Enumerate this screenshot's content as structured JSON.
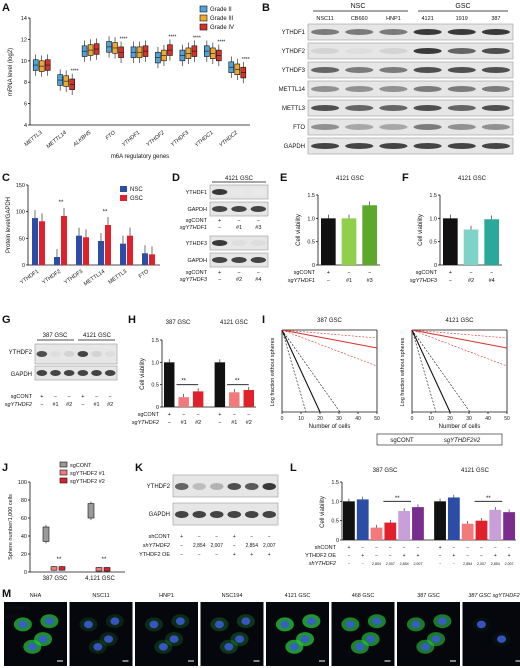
{
  "panels": {
    "A": {
      "label": "A",
      "chart_data": {
        "type": "boxplot",
        "ylabel": "mRNA level (log2)",
        "xlabel": "m6A regulatory genes",
        "ylim": [
          4,
          14
        ],
        "yticks": [
          "4",
          "6",
          "8",
          "10",
          "12",
          "14"
        ],
        "categories": [
          "METTL3",
          "METTL14",
          "ALKBH5",
          "FTO",
          "YTHDF1",
          "YTHDF2",
          "YTHDF3",
          "YTHDC1",
          "YTHDC2"
        ],
        "series": [
          {
            "name": "Grade II",
            "color": "#4fa3d9",
            "values": [
              9.6,
              8.2,
              10.9,
              11.3,
              10.8,
              10.3,
              10.5,
              10.9,
              9.4
            ]
          },
          {
            "name": "Grade III",
            "color": "#f0a92e",
            "values": [
              9.5,
              8.1,
              11.0,
              11.2,
              10.8,
              10.5,
              10.7,
              10.7,
              9.2
            ]
          },
          {
            "name": "Grade IV",
            "color": "#d6312b",
            "values": [
              9.6,
              7.8,
              11.1,
              10.8,
              10.9,
              11.0,
              10.9,
              10.5,
              8.9
            ]
          }
        ],
        "significance": [
          "",
          "****",
          "",
          "****",
          "",
          "****",
          "****",
          "****",
          "****"
        ]
      }
    },
    "B": {
      "label": "B",
      "group_labels": [
        "NSC",
        "GSC"
      ],
      "lanes": [
        "NSC11",
        "CB660",
        "HNP1",
        "4121",
        "1919",
        "387"
      ],
      "rows": [
        "YTHDF1",
        "YTHDF2",
        "YTHDF3",
        "METTL14",
        "METTL3",
        "FTO",
        "GAPDH"
      ]
    },
    "C": {
      "label": "C",
      "chart_data": {
        "type": "bar",
        "ylabel": "Protein level/GAPDH",
        "ylim": [
          0,
          150
        ],
        "yticks": [
          "0",
          "50",
          "100",
          "150"
        ],
        "categories": [
          "YTHDF1",
          "YTHDF2",
          "YTHDF3",
          "METTL14",
          "METTL3",
          "FTO"
        ],
        "series": [
          {
            "name": "NSC",
            "color": "#2b4da6",
            "values": [
              88,
              15,
              55,
              45,
              40,
              22
            ]
          },
          {
            "name": "GSC",
            "color": "#e0212b",
            "values": [
              82,
              92,
              52,
              75,
              55,
              20
            ]
          }
        ],
        "significance": [
          "",
          "**",
          "",
          "**",
          "",
          ""
        ]
      }
    },
    "D": {
      "label": "D",
      "title": "4121 GSC",
      "blot1": {
        "rows": [
          "YTHDF1",
          "GAPDH"
        ],
        "sgcont": [
          "+",
          "−",
          "−"
        ],
        "sg": [
          "−",
          "#1",
          "#3"
        ],
        "sg_label": "sgYTHDF1"
      },
      "blot2": {
        "rows": [
          "YTHDF3",
          "GAPDH"
        ],
        "sgcont": [
          "+",
          "−",
          "−"
        ],
        "sg": [
          "−",
          "#2",
          "#4"
        ],
        "sg_label": "sgYTHDF3"
      },
      "sgcont_label": "sgCONT"
    },
    "E": {
      "label": "E",
      "title": "4121 GSC",
      "chart_data": {
        "type": "bar",
        "ylabel": "Cell viability",
        "ylim": [
          0,
          1.5
        ],
        "yticks": [
          "0",
          "0.5",
          "1.0",
          "1.5"
        ],
        "values": [
          1.0,
          1.0,
          1.28
        ],
        "colors": [
          "#111111",
          "#8fcf4c",
          "#5ba82a"
        ],
        "sgcont": [
          "+",
          "−",
          "−"
        ],
        "sg": [
          "−",
          "#1",
          "#3"
        ],
        "sgcont_label": "sgCONT",
        "sg_label": "sgYTHDF1"
      }
    },
    "F": {
      "label": "F",
      "title": "4121 GSC",
      "chart_data": {
        "type": "bar",
        "ylabel": "Cell viability",
        "ylim": [
          0,
          1.5
        ],
        "yticks": [
          "0",
          "0.5",
          "1.0",
          "1.5"
        ],
        "values": [
          1.0,
          0.76,
          0.98
        ],
        "colors": [
          "#111111",
          "#7dd3c8",
          "#2aa89a"
        ],
        "sgcont": [
          "+",
          "−",
          "−"
        ],
        "sg": [
          "−",
          "#2",
          "#4"
        ],
        "sgcont_label": "sgCONT",
        "sg_label": "sgYTHDF3"
      }
    },
    "G": {
      "label": "G",
      "groups": [
        "387 GSC",
        "4121 GSC"
      ],
      "rows": [
        "YTHDF2",
        "GAPDH"
      ],
      "sgcont": [
        "+",
        "−",
        "−",
        "+",
        "−",
        "−"
      ],
      "sg": [
        "−",
        "#1",
        "#2",
        "−",
        "#1",
        "#2"
      ],
      "sgcont_label": "sgCONT",
      "sg_label": "sgYTHDF2"
    },
    "H": {
      "label": "H",
      "groups": [
        "387 GSC",
        "4121 GSC"
      ],
      "chart_data": {
        "type": "bar",
        "ylabel": "Cell viability",
        "ylim": [
          0,
          1.5
        ],
        "yticks": [
          "0",
          "0.5",
          "1.0",
          "1.5"
        ],
        "values": [
          1.0,
          0.22,
          0.35,
          1.0,
          0.33,
          0.38
        ],
        "colors": [
          "#111111",
          "#f27a7a",
          "#e0212b",
          "#111111",
          "#f27a7a",
          "#e0212b"
        ],
        "significance": [
          "**",
          "**"
        ],
        "sgcont": [
          "+",
          "−",
          "−",
          "+",
          "−",
          "−"
        ],
        "sg": [
          "−",
          "#1",
          "#2",
          "−",
          "#1",
          "#2"
        ],
        "sgcont_label": "sgCONT",
        "sg_label": "sgYTHDF2"
      }
    },
    "I": {
      "label": "I",
      "groups": [
        "387 GSC",
        "4121 GSC"
      ],
      "ylabel": "Log fraction without spheres",
      "xlabel": "Number of cells",
      "xticks": [
        "0",
        "10",
        "20",
        "30",
        "40",
        "50"
      ],
      "legend": [
        "sgCONT",
        "sgYTHDF2#2"
      ]
    },
    "J": {
      "label": "J",
      "chart_data": {
        "type": "boxplot",
        "ylabel": "Sphere number/1,000 cells",
        "ylim": [
          0,
          100
        ],
        "yticks": [
          "0",
          "20",
          "40",
          "60",
          "80",
          "100"
        ],
        "categories": [
          "387 GSC",
          "4,121 GSC"
        ],
        "series": [
          {
            "name": "sgCONT",
            "color": "#9a9a9a",
            "values": [
              42,
              68
            ]
          },
          {
            "name": "sgYTHDF2 #1",
            "color": "#f27a7a",
            "values": [
              4,
              3
            ]
          },
          {
            "name": "sgYTHDF2 #2",
            "color": "#e0212b",
            "values": [
              4,
              3
            ]
          }
        ],
        "significance": [
          "**",
          "**"
        ]
      }
    },
    "K": {
      "label": "K",
      "rows": [
        "YTHDF2",
        "GAPDH"
      ],
      "shcont": [
        "+",
        "−",
        "−",
        "+",
        "−",
        "−"
      ],
      "sh": [
        "−",
        "2,854",
        "2,007",
        "−",
        "2,854",
        "2,007"
      ],
      "oe": [
        "−",
        "−",
        "−",
        "+",
        "+",
        "+"
      ],
      "shcont_label": "shCONT",
      "sh_label": "shYTHDF2",
      "oe_label": "YTHDF2 OE"
    },
    "L": {
      "label": "L",
      "groups": [
        "387 GSC",
        "4121 GSC"
      ],
      "chart_data": {
        "type": "bar",
        "ylabel": "Cell viability",
        "ylim": [
          0,
          1.5
        ],
        "yticks": [
          "0",
          "0.5",
          "1.0",
          "1.5"
        ],
        "values": [
          1.0,
          1.05,
          0.32,
          0.45,
          0.75,
          0.85,
          1.0,
          1.1,
          0.42,
          0.5,
          0.78,
          0.72
        ],
        "colors": [
          "#111111",
          "#2b4da6",
          "#f27a7a",
          "#e0212b",
          "#c89fd8",
          "#7b2d8e",
          "#111111",
          "#2b4da6",
          "#f27a7a",
          "#e0212b",
          "#c89fd8",
          "#7b2d8e"
        ],
        "significance": [
          "**",
          "**"
        ],
        "shcont": [
          "+",
          "−",
          "−",
          "−",
          "−",
          "−",
          "+",
          "−",
          "−",
          "−",
          "−",
          "−"
        ],
        "oe": [
          "−",
          "+",
          "−",
          "−",
          "+",
          "+",
          "−",
          "+",
          "−",
          "−",
          "+",
          "+"
        ],
        "sh": [
          "−",
          "−",
          "2,854",
          "2,007",
          "2,854",
          "2,007",
          "−",
          "−",
          "2,854",
          "2,007",
          "2,854",
          "2,007"
        ],
        "shcont_label": "shCONT",
        "oe_label": "YTHDF2 OE",
        "sh_label": "shYTHDF2"
      }
    },
    "M": {
      "label": "M",
      "legend": [
        "YTHDF2",
        "DAPI"
      ],
      "images": [
        "NHA",
        "NSC11",
        "HNP1",
        "NSC194",
        "4121 GSC",
        "468 GSC",
        "387 GSC",
        "387 GSC sgYTHDF2"
      ]
    }
  }
}
